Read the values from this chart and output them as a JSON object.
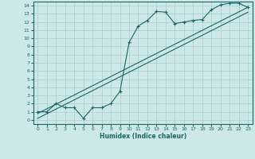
{
  "title": "",
  "xlabel": "Humidex (Indice chaleur)",
  "bg_color": "#cce8e8",
  "grid_color": "#aacccc",
  "line_color": "#1a6666",
  "xlim": [
    -0.5,
    23.5
  ],
  "ylim": [
    -0.5,
    14.5
  ],
  "xticks": [
    0,
    1,
    2,
    3,
    4,
    5,
    6,
    7,
    8,
    9,
    10,
    11,
    12,
    13,
    14,
    15,
    16,
    17,
    18,
    19,
    20,
    21,
    22,
    23
  ],
  "yticks": [
    0,
    1,
    2,
    3,
    4,
    5,
    6,
    7,
    8,
    9,
    10,
    11,
    12,
    13,
    14
  ],
  "scatter_x": [
    0,
    1,
    2,
    3,
    4,
    5,
    6,
    7,
    8,
    9,
    10,
    11,
    12,
    13,
    14,
    15,
    16,
    17,
    18,
    19,
    20,
    21,
    22,
    23
  ],
  "scatter_y": [
    1,
    1,
    2,
    1.5,
    1.5,
    0.2,
    1.5,
    1.5,
    2,
    3.5,
    9.5,
    11.5,
    12.2,
    13.3,
    13.2,
    11.8,
    12.0,
    12.2,
    12.3,
    13.5,
    14.1,
    14.3,
    14.3,
    13.8
  ],
  "line1_x": [
    0,
    23
  ],
  "line1_y": [
    0.8,
    13.8
  ],
  "line2_x": [
    0,
    23
  ],
  "line2_y": [
    0.2,
    13.2
  ]
}
